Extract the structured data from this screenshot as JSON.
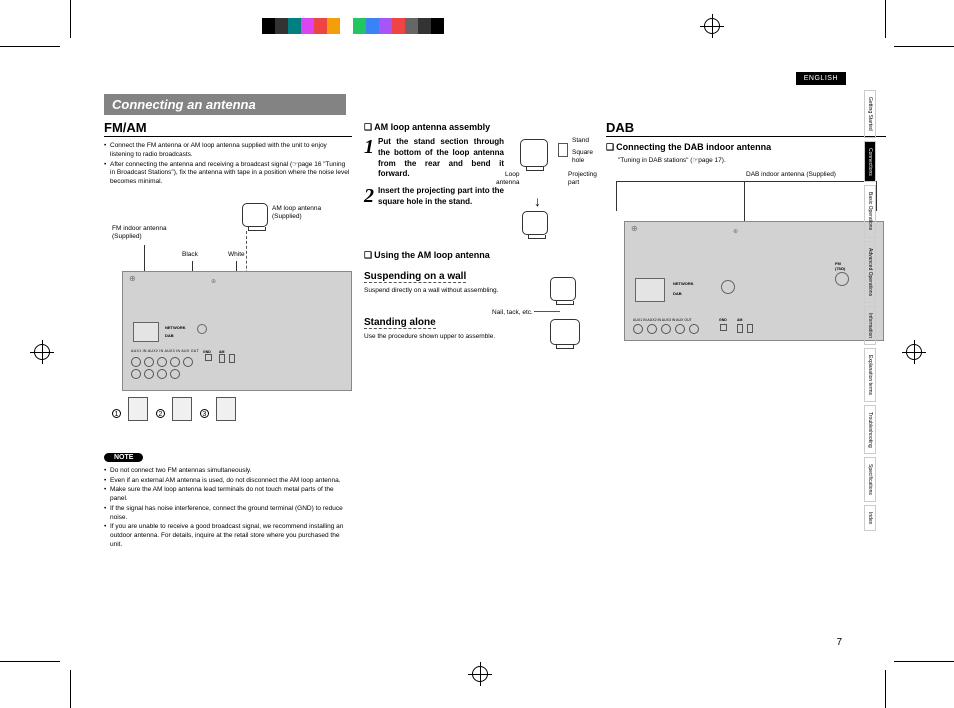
{
  "print_marks": {
    "color_bar": [
      "#000000",
      "#333333",
      "#008080",
      "#d946ef",
      "#ef4444",
      "#f59e0b",
      "#ffffff",
      "#22c55e",
      "#3b82f6",
      "#a855f7",
      "#ef4444",
      "#666666",
      "#333333",
      "#000000"
    ]
  },
  "language": "ENGLISH",
  "title": "Connecting an antenna",
  "page_number": "7",
  "side_tabs": [
    {
      "label": "Getting Started",
      "active": false
    },
    {
      "label": "Connections",
      "active": true
    },
    {
      "label": "Basic Operations",
      "active": false
    },
    {
      "label": "Advanced Operations",
      "active": false
    },
    {
      "label": "Information",
      "active": false
    },
    {
      "label": "Explanation terms",
      "active": false
    },
    {
      "label": "Troubleshooting",
      "active": false
    },
    {
      "label": "Specifications",
      "active": false
    },
    {
      "label": "Index",
      "active": false
    }
  ],
  "fm_am": {
    "heading": "FM/AM",
    "bullets": [
      "Connect the FM antenna or AM loop antenna supplied with the unit to enjoy listening to radio broadcasts.",
      "After connecting the antenna and receiving a broadcast signal (☞page 16 \"Tuning in Broadcast Stations\"), fix the antenna with tape in a position where the noise level becomes minimal."
    ],
    "labels": {
      "fm_indoor": "FM indoor antenna\n(Supplied)",
      "am_loop": "AM loop antenna\n(Supplied)",
      "black": "Black",
      "white": "White"
    },
    "device_ports": [
      "NETWORK",
      "DAB",
      "AUX1 IN",
      "AUX2 IN",
      "AUX3 IN",
      "AUX OUT",
      "GND",
      "AM"
    ],
    "note_label": "NOTE",
    "notes": [
      "Do not connect two FM antennas simultaneously.",
      "Even if an external AM antenna is used, do not disconnect the AM loop antenna.",
      "Make sure the AM loop antenna lead terminals do not touch metal parts of the panel.",
      "If the signal has noise interference, connect the ground terminal (GND) to reduce noise.",
      "If you are unable to receive a good broadcast signal, we recommend installing an outdoor antenna. For details, inquire at the retail store where you purchased the unit."
    ]
  },
  "am_assembly": {
    "heading": "AM loop antenna assembly",
    "steps": [
      {
        "num": "1",
        "text": "Put the stand section through the bottom of the loop antenna from the rear and bend it forward."
      },
      {
        "num": "2",
        "text": "Insert the projecting part into the square hole in the stand."
      }
    ],
    "diagram_labels": {
      "stand": "Stand",
      "square_hole": "Square\nhole",
      "loop_antenna": "Loop\nantenna",
      "projecting": "Projecting\npart"
    },
    "using_heading": "Using the AM loop antenna",
    "suspending": "Suspending on a wall",
    "suspending_text": "Suspend directly on a wall without assembling.",
    "nail_label": "Nail, tack, etc.",
    "standing": "Standing alone",
    "standing_text": "Use the procedure shown upper to assemble."
  },
  "dab": {
    "heading": "DAB",
    "sub_heading": "Connecting the DAB indoor antenna",
    "note": "\"Tuning in DAB stations\" (☞page 17).",
    "labels": {
      "dab_indoor": "DAB indoor antenna (Supplied)"
    },
    "device_ports": [
      "NETWORK",
      "DAB",
      "FM (75Ω)",
      "AUX1 IN",
      "AUX2 IN",
      "AUX3 IN",
      "AUX OUT",
      "GND",
      "AM"
    ]
  },
  "colors": {
    "title_bar_bg": "#838383",
    "device_bg": "#d2d2d2",
    "text": "#000000"
  }
}
